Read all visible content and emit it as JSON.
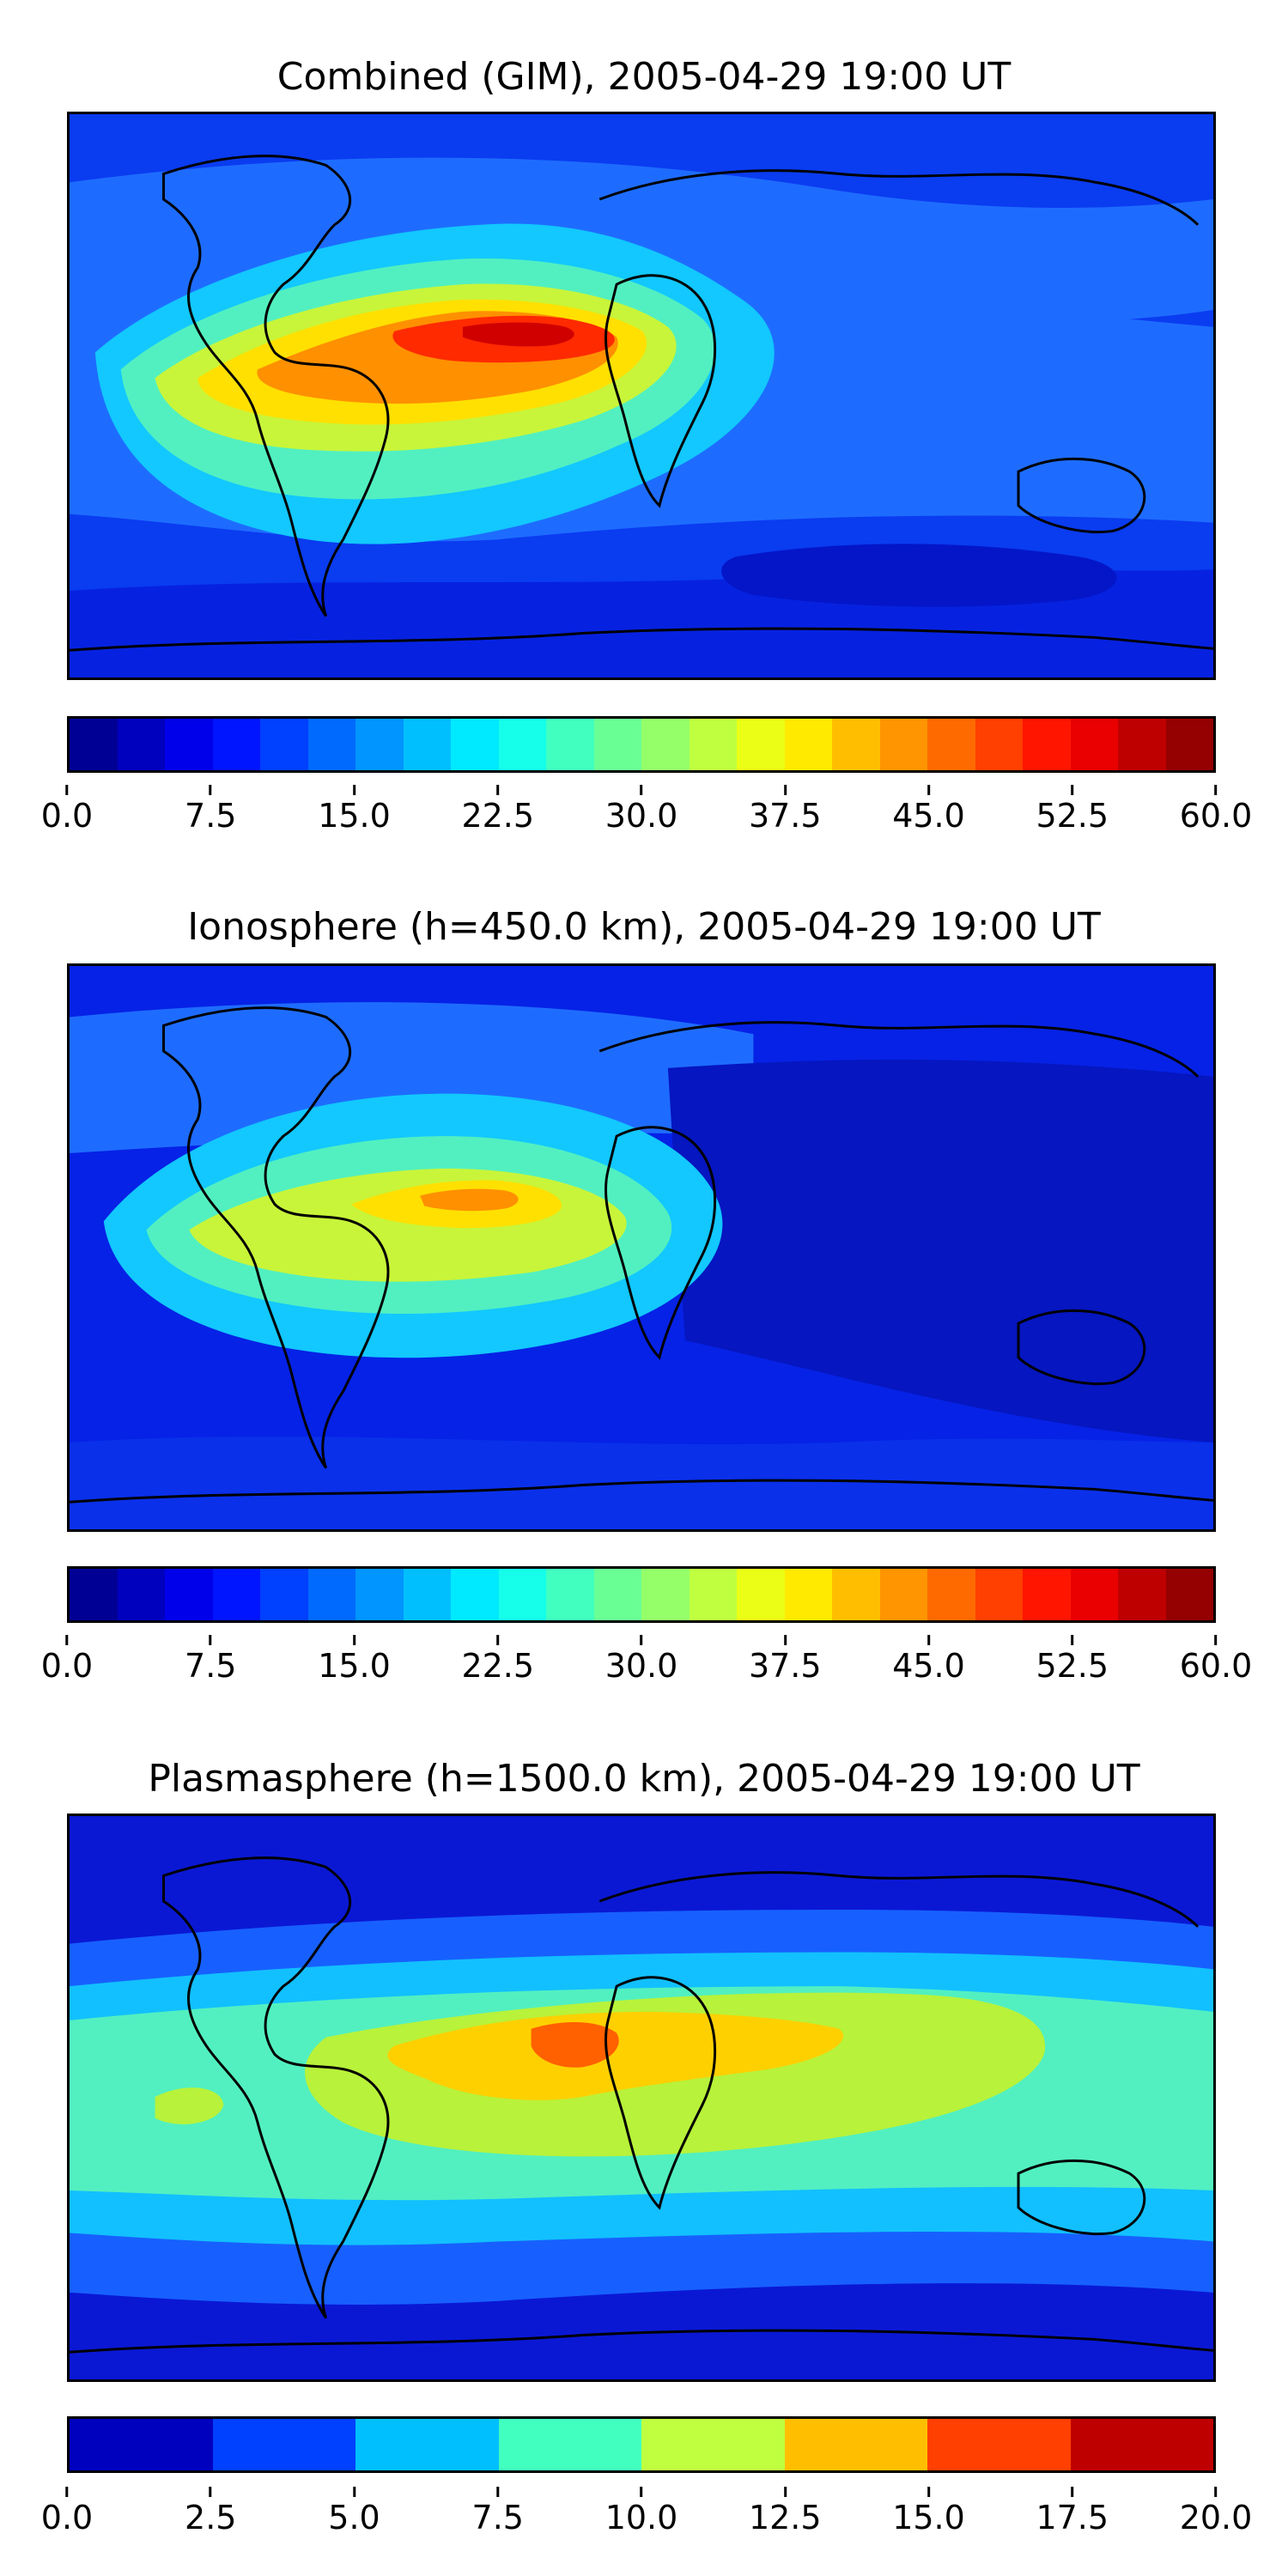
{
  "panels": [
    {
      "title": "Combined (GIM), 2005-04-29 19:00 UT",
      "colorbar_ticks": [
        "0.0",
        "7.5",
        "15.0",
        "22.5",
        "30.0",
        "37.5",
        "45.0",
        "52.5",
        "60.0"
      ],
      "colorbar_levels": 24,
      "background_color": "#0a3cf0"
    },
    {
      "title": "Ionosphere  (h=450.0 km), 2005-04-29 19:00 UT",
      "colorbar_ticks": [
        "0.0",
        "7.5",
        "15.0",
        "22.5",
        "30.0",
        "37.5",
        "45.0",
        "52.5",
        "60.0"
      ],
      "colorbar_levels": 24,
      "background_color": "#0622e6"
    },
    {
      "title": "Plasmasphere (h=1500.0 km), 2005-04-29 19:00 UT",
      "colorbar_ticks": [
        "0.0",
        "2.5",
        "5.0",
        "7.5",
        "10.0",
        "12.5",
        "15.0",
        "17.5",
        "20.0"
      ],
      "colorbar_levels": 8,
      "background_color": "#0a18d4"
    }
  ],
  "colormap": "jet"
}
